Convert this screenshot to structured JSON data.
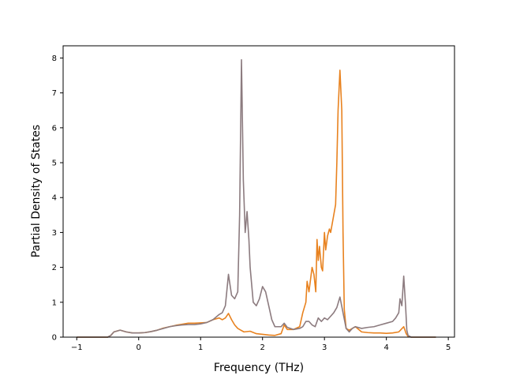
{
  "chart_data": {
    "type": "line",
    "title": "",
    "xlabel": "Frequency (THz)",
    "ylabel": "Partial Density of States",
    "xlim": [
      -1.22,
      5.1
    ],
    "ylim": [
      0,
      8.35
    ],
    "xticks": [
      -1,
      0,
      1,
      2,
      3,
      4,
      5
    ],
    "xtick_labels": [
      "−1",
      "0",
      "1",
      "2",
      "3",
      "4",
      "5"
    ],
    "yticks": [
      0,
      1,
      2,
      3,
      4,
      5,
      6,
      7,
      8
    ],
    "ytick_labels": [
      "0",
      "1",
      "2",
      "3",
      "4",
      "5",
      "6",
      "7",
      "8"
    ],
    "grid": false,
    "legend": "none",
    "series": [
      {
        "color": "#e8821f",
        "points": [
          [
            -1.0,
            0
          ],
          [
            -0.5,
            0
          ],
          [
            -0.45,
            0.05
          ],
          [
            -0.4,
            0.15
          ],
          [
            -0.3,
            0.2
          ],
          [
            -0.2,
            0.15
          ],
          [
            -0.1,
            0.12
          ],
          [
            0.0,
            0.12
          ],
          [
            0.1,
            0.13
          ],
          [
            0.2,
            0.16
          ],
          [
            0.3,
            0.2
          ],
          [
            0.4,
            0.26
          ],
          [
            0.5,
            0.3
          ],
          [
            0.6,
            0.34
          ],
          [
            0.7,
            0.37
          ],
          [
            0.8,
            0.4
          ],
          [
            0.9,
            0.4
          ],
          [
            1.0,
            0.41
          ],
          [
            1.1,
            0.42
          ],
          [
            1.2,
            0.5
          ],
          [
            1.3,
            0.55
          ],
          [
            1.35,
            0.5
          ],
          [
            1.4,
            0.55
          ],
          [
            1.45,
            0.68
          ],
          [
            1.5,
            0.5
          ],
          [
            1.55,
            0.35
          ],
          [
            1.6,
            0.25
          ],
          [
            1.65,
            0.2
          ],
          [
            1.7,
            0.15
          ],
          [
            1.8,
            0.17
          ],
          [
            1.9,
            0.1
          ],
          [
            2.0,
            0.08
          ],
          [
            2.1,
            0.06
          ],
          [
            2.2,
            0.05
          ],
          [
            2.3,
            0.1
          ],
          [
            2.35,
            0.35
          ],
          [
            2.4,
            0.22
          ],
          [
            2.5,
            0.22
          ],
          [
            2.6,
            0.3
          ],
          [
            2.65,
            0.7
          ],
          [
            2.7,
            1.0
          ],
          [
            2.72,
            1.6
          ],
          [
            2.75,
            1.3
          ],
          [
            2.8,
            2.0
          ],
          [
            2.83,
            1.8
          ],
          [
            2.86,
            1.3
          ],
          [
            2.88,
            2.8
          ],
          [
            2.9,
            2.2
          ],
          [
            2.92,
            2.6
          ],
          [
            2.95,
            2.0
          ],
          [
            2.97,
            1.9
          ],
          [
            3.0,
            3.0
          ],
          [
            3.02,
            2.5
          ],
          [
            3.05,
            2.9
          ],
          [
            3.08,
            3.1
          ],
          [
            3.1,
            3.0
          ],
          [
            3.15,
            3.5
          ],
          [
            3.18,
            3.8
          ],
          [
            3.2,
            5.0
          ],
          [
            3.22,
            6.5
          ],
          [
            3.25,
            7.65
          ],
          [
            3.28,
            6.5
          ],
          [
            3.3,
            3.0
          ],
          [
            3.32,
            0.8
          ],
          [
            3.35,
            0.25
          ],
          [
            3.4,
            0.2
          ],
          [
            3.5,
            0.3
          ],
          [
            3.6,
            0.15
          ],
          [
            3.7,
            0.13
          ],
          [
            3.8,
            0.12
          ],
          [
            3.9,
            0.12
          ],
          [
            4.0,
            0.11
          ],
          [
            4.1,
            0.12
          ],
          [
            4.2,
            0.15
          ],
          [
            4.28,
            0.3
          ],
          [
            4.32,
            0.1
          ],
          [
            4.35,
            0.02
          ],
          [
            4.4,
            0
          ],
          [
            4.8,
            0
          ]
        ]
      },
      {
        "color": "#8c7b7f",
        "points": [
          [
            -1.0,
            0
          ],
          [
            -0.5,
            0
          ],
          [
            -0.45,
            0.05
          ],
          [
            -0.4,
            0.15
          ],
          [
            -0.3,
            0.2
          ],
          [
            -0.2,
            0.15
          ],
          [
            -0.1,
            0.12
          ],
          [
            0.0,
            0.12
          ],
          [
            0.1,
            0.13
          ],
          [
            0.2,
            0.16
          ],
          [
            0.3,
            0.2
          ],
          [
            0.4,
            0.25
          ],
          [
            0.5,
            0.3
          ],
          [
            0.6,
            0.33
          ],
          [
            0.7,
            0.35
          ],
          [
            0.8,
            0.36
          ],
          [
            0.9,
            0.36
          ],
          [
            1.0,
            0.38
          ],
          [
            1.1,
            0.42
          ],
          [
            1.2,
            0.5
          ],
          [
            1.3,
            0.65
          ],
          [
            1.35,
            0.7
          ],
          [
            1.4,
            0.9
          ],
          [
            1.45,
            1.8
          ],
          [
            1.5,
            1.2
          ],
          [
            1.55,
            1.1
          ],
          [
            1.6,
            1.3
          ],
          [
            1.63,
            3.5
          ],
          [
            1.66,
            7.95
          ],
          [
            1.69,
            4.5
          ],
          [
            1.72,
            3.0
          ],
          [
            1.75,
            3.6
          ],
          [
            1.78,
            2.8
          ],
          [
            1.8,
            2.0
          ],
          [
            1.85,
            1.0
          ],
          [
            1.9,
            0.9
          ],
          [
            1.95,
            1.1
          ],
          [
            2.0,
            1.45
          ],
          [
            2.05,
            1.3
          ],
          [
            2.1,
            0.9
          ],
          [
            2.15,
            0.5
          ],
          [
            2.2,
            0.3
          ],
          [
            2.3,
            0.3
          ],
          [
            2.35,
            0.4
          ],
          [
            2.4,
            0.28
          ],
          [
            2.5,
            0.22
          ],
          [
            2.6,
            0.25
          ],
          [
            2.65,
            0.3
          ],
          [
            2.7,
            0.45
          ],
          [
            2.75,
            0.45
          ],
          [
            2.8,
            0.35
          ],
          [
            2.85,
            0.3
          ],
          [
            2.9,
            0.55
          ],
          [
            2.95,
            0.45
          ],
          [
            3.0,
            0.55
          ],
          [
            3.05,
            0.5
          ],
          [
            3.1,
            0.6
          ],
          [
            3.15,
            0.7
          ],
          [
            3.2,
            0.85
          ],
          [
            3.25,
            1.15
          ],
          [
            3.3,
            0.7
          ],
          [
            3.35,
            0.25
          ],
          [
            3.4,
            0.15
          ],
          [
            3.45,
            0.25
          ],
          [
            3.5,
            0.3
          ],
          [
            3.6,
            0.25
          ],
          [
            3.7,
            0.28
          ],
          [
            3.8,
            0.3
          ],
          [
            3.9,
            0.35
          ],
          [
            4.0,
            0.4
          ],
          [
            4.1,
            0.45
          ],
          [
            4.15,
            0.55
          ],
          [
            4.2,
            0.7
          ],
          [
            4.22,
            1.1
          ],
          [
            4.25,
            0.9
          ],
          [
            4.28,
            1.75
          ],
          [
            4.31,
            0.9
          ],
          [
            4.33,
            0.2
          ],
          [
            4.35,
            0.05
          ],
          [
            4.4,
            0
          ],
          [
            4.8,
            0
          ]
        ]
      }
    ]
  }
}
